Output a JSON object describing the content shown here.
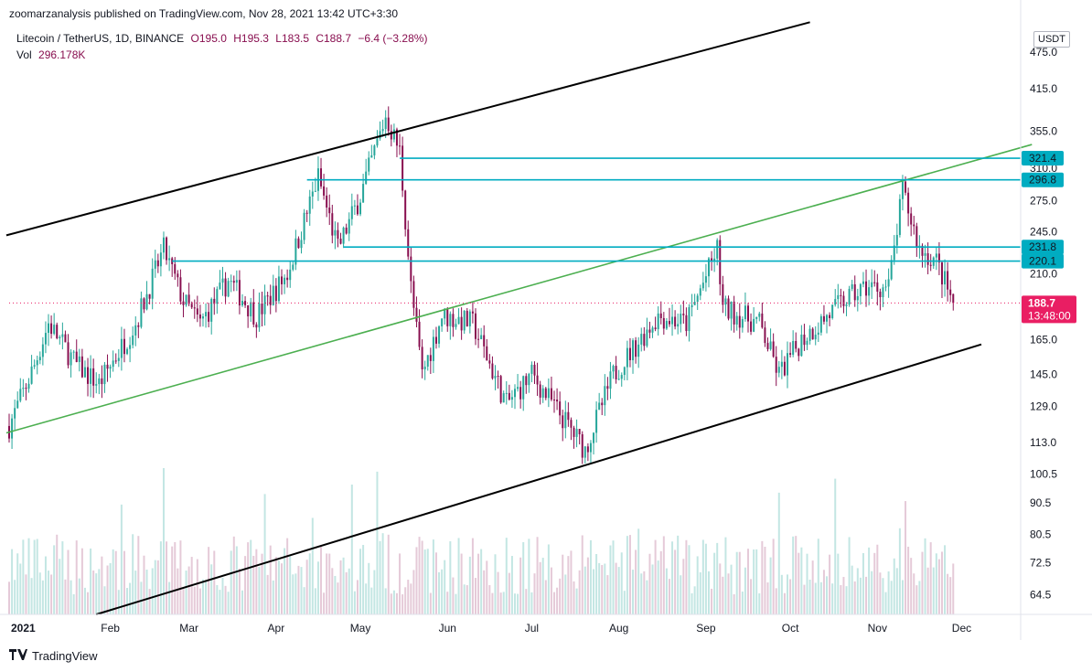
{
  "publish_line": "zoomarzanalysis published on TradingView.com, Nov 28, 2021 13:42 UTC+3:30",
  "legend": {
    "symbol": "Litecoin / TetherUS, 1D, BINANCE",
    "open": "O195.0",
    "high": "H195.3",
    "low": "L183.5",
    "close": "C188.7",
    "change": "−6.4 (−3.28%)",
    "vol_label": "Vol",
    "vol_value": "296.178K"
  },
  "currency_badge": "USDT",
  "footer_brand": "TradingView",
  "colors": {
    "up": "#26a69a",
    "down": "#880e4f",
    "channel": "#000000",
    "midline": "#4caf50",
    "level": "#00acc1",
    "price_tag": "#e91e63"
  },
  "chart_data": {
    "type": "candlestick",
    "symbol": "LTCUSDT",
    "y_scale": "log",
    "ylim": [
      60,
      520
    ],
    "y_ticks": [
      64.5,
      72.5,
      80.5,
      90.5,
      100.5,
      113.0,
      129.0,
      145.0,
      165.0,
      185.0,
      210.0,
      245.0,
      275.0,
      310.0,
      355.0,
      415.0,
      475.0
    ],
    "x_ticks": [
      {
        "label": "2021",
        "date": "2021-01-01"
      },
      {
        "label": "Feb",
        "date": "2021-02-01"
      },
      {
        "label": "Mar",
        "date": "2021-03-01"
      },
      {
        "label": "Apr",
        "date": "2021-04-01"
      },
      {
        "label": "May",
        "date": "2021-05-01"
      },
      {
        "label": "Jun",
        "date": "2021-06-01"
      },
      {
        "label": "Jul",
        "date": "2021-07-01"
      },
      {
        "label": "Aug",
        "date": "2021-08-01"
      },
      {
        "label": "Sep",
        "date": "2021-09-01"
      },
      {
        "label": "Oct",
        "date": "2021-10-01"
      },
      {
        "label": "Nov",
        "date": "2021-11-01"
      },
      {
        "label": "Dec",
        "date": "2021-12-01"
      }
    ],
    "price_path": [
      [
        "2020-12-27",
        120
      ],
      [
        "2021-01-05",
        150
      ],
      [
        "2021-01-10",
        175
      ],
      [
        "2021-01-20",
        150
      ],
      [
        "2021-01-28",
        140
      ],
      [
        "2021-02-10",
        175
      ],
      [
        "2021-02-20",
        230
      ],
      [
        "2021-02-27",
        190
      ],
      [
        "2021-03-05",
        175
      ],
      [
        "2021-03-15",
        205
      ],
      [
        "2021-03-25",
        180
      ],
      [
        "2021-04-05",
        210
      ],
      [
        "2021-04-16",
        300
      ],
      [
        "2021-04-23",
        230
      ],
      [
        "2021-05-01",
        280
      ],
      [
        "2021-05-10",
        375
      ],
      [
        "2021-05-15",
        330
      ],
      [
        "2021-05-19",
        200
      ],
      [
        "2021-05-23",
        145
      ],
      [
        "2021-05-30",
        180
      ],
      [
        "2021-06-10",
        175
      ],
      [
        "2021-06-22",
        130
      ],
      [
        "2021-07-01",
        145
      ],
      [
        "2021-07-20",
        110
      ],
      [
        "2021-07-30",
        145
      ],
      [
        "2021-08-15",
        180
      ],
      [
        "2021-08-25",
        175
      ],
      [
        "2021-09-05",
        230
      ],
      [
        "2021-09-07",
        185
      ],
      [
        "2021-09-20",
        175
      ],
      [
        "2021-09-27",
        145
      ],
      [
        "2021-10-05",
        165
      ],
      [
        "2021-10-20",
        190
      ],
      [
        "2021-10-28",
        200
      ],
      [
        "2021-11-05",
        200
      ],
      [
        "2021-11-10",
        285
      ],
      [
        "2021-11-16",
        230
      ],
      [
        "2021-11-22",
        220
      ],
      [
        "2021-11-28",
        188.7
      ]
    ],
    "horizontal_levels": [
      {
        "label": "321.4",
        "value": 321.4,
        "from": "2021-05-15"
      },
      {
        "label": "296.8",
        "value": 296.8,
        "from": "2021-04-12"
      },
      {
        "label": "231.8",
        "value": 231.8,
        "from": "2021-04-25"
      },
      {
        "label": "220.1",
        "value": 220.1,
        "from": "2021-02-23"
      }
    ],
    "trend_lines": [
      {
        "name": "channel-top",
        "p1": [
          "2020-12-26",
          242
        ],
        "p2": [
          "2021-10-08",
          530
        ]
      },
      {
        "name": "channel-bottom",
        "p1": [
          "2021-01-27",
          60
        ],
        "p2": [
          "2021-12-08",
          162
        ]
      },
      {
        "name": "midline",
        "p1": [
          "2020-12-26",
          117
        ],
        "p2": [
          "2021-12-26",
          338
        ]
      }
    ],
    "last_price": {
      "label": "188.7",
      "value": 188.7,
      "countdown": "13:48:00"
    }
  }
}
